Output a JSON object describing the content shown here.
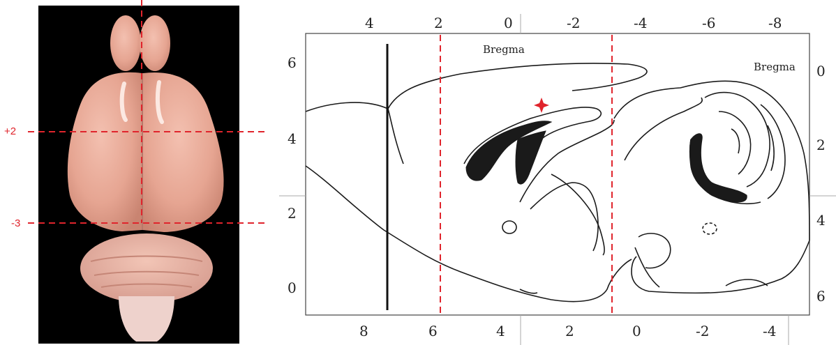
{
  "left_panel": {
    "section_labels": [
      "+2",
      "-3"
    ],
    "colors": {
      "background": "#000000",
      "tissue": "#e9aa99",
      "guide_line": "#e0242c"
    }
  },
  "right_panel": {
    "top_axis_ticks": [
      "4",
      "2",
      "0",
      "-2",
      "-4",
      "-6",
      "-8"
    ],
    "bottom_axis_ticks": [
      "8",
      "6",
      "4",
      "2",
      "0",
      "-2",
      "-4"
    ],
    "left_axis_ticks": [
      "6",
      "4",
      "2",
      "0"
    ],
    "right_axis_ticks": [
      "0",
      "2",
      "4",
      "6"
    ],
    "top_bregma_label": "Bregma",
    "right_bregma_label": "Bregma",
    "marker_icon": "red-star-icon",
    "colors": {
      "outline": "#1a1a1a",
      "cut_line": "#e0242c",
      "ventricle_fill": "#1a1a1a"
    }
  }
}
